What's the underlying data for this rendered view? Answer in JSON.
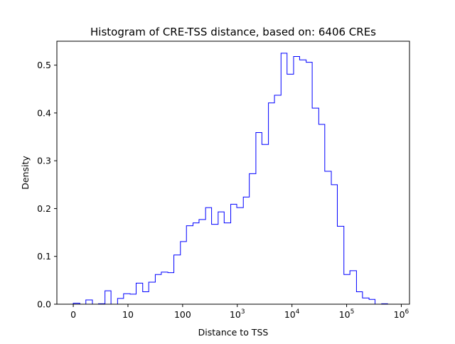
{
  "chart_data": {
    "type": "histogram-step",
    "title": "Histogram of CRE-TSS distance, based on: 6406 CREs",
    "xlabel": "Distance to TSS",
    "ylabel": "Density",
    "x_scale": "symlog (linear below 10, log above)",
    "xlim": [
      -0.3,
      6.15
    ],
    "ylim": [
      0,
      0.55
    ],
    "line_color": "#0000ff",
    "grid": false,
    "xticks": [
      {
        "value": 0,
        "label": "0"
      },
      {
        "value": 10,
        "label": "10"
      },
      {
        "value": 100,
        "label": "100"
      },
      {
        "value": 1000,
        "label": "10",
        "exp": "3"
      },
      {
        "value": 10000,
        "label": "10",
        "exp": "4"
      },
      {
        "value": 100000,
        "label": "10",
        "exp": "5"
      },
      {
        "value": 1000000,
        "label": "10",
        "exp": "6"
      }
    ],
    "yticks": [
      {
        "value": 0.0,
        "label": "0.0"
      },
      {
        "value": 0.1,
        "label": "0.1"
      },
      {
        "value": 0.2,
        "label": "0.2"
      },
      {
        "value": 0.3,
        "label": "0.3"
      },
      {
        "value": 0.4,
        "label": "0.4"
      },
      {
        "value": 0.5,
        "label": "0.5"
      }
    ],
    "bin_edges_symlog": [
      0.0,
      0.12,
      0.23,
      0.35,
      0.46,
      0.58,
      0.69,
      0.81,
      0.92,
      1.04,
      1.15,
      1.27,
      1.38,
      1.5,
      1.61,
      1.73,
      1.84,
      1.96,
      2.07,
      2.19,
      2.3,
      2.42,
      2.53,
      2.65,
      2.76,
      2.88,
      2.99,
      3.11,
      3.22,
      3.34,
      3.45,
      3.57,
      3.68,
      3.8,
      3.91,
      4.03,
      4.14,
      4.26,
      4.37,
      4.49,
      4.6,
      4.72,
      4.83,
      4.95,
      5.06,
      5.18,
      5.29,
      5.41,
      5.52,
      5.64,
      5.75,
      5.87
    ],
    "densities": [
      0.002,
      0.0,
      0.009,
      0.0,
      0.001,
      0.028,
      0.0,
      0.012,
      0.022,
      0.021,
      0.044,
      0.026,
      0.046,
      0.062,
      0.067,
      0.066,
      0.103,
      0.131,
      0.164,
      0.17,
      0.177,
      0.202,
      0.167,
      0.193,
      0.17,
      0.209,
      0.202,
      0.224,
      0.273,
      0.359,
      0.334,
      0.421,
      0.437,
      0.525,
      0.481,
      0.518,
      0.511,
      0.506,
      0.41,
      0.376,
      0.278,
      0.25,
      0.163,
      0.062,
      0.07,
      0.026,
      0.013,
      0.01,
      0.0,
      0.001,
      0.0
    ]
  }
}
